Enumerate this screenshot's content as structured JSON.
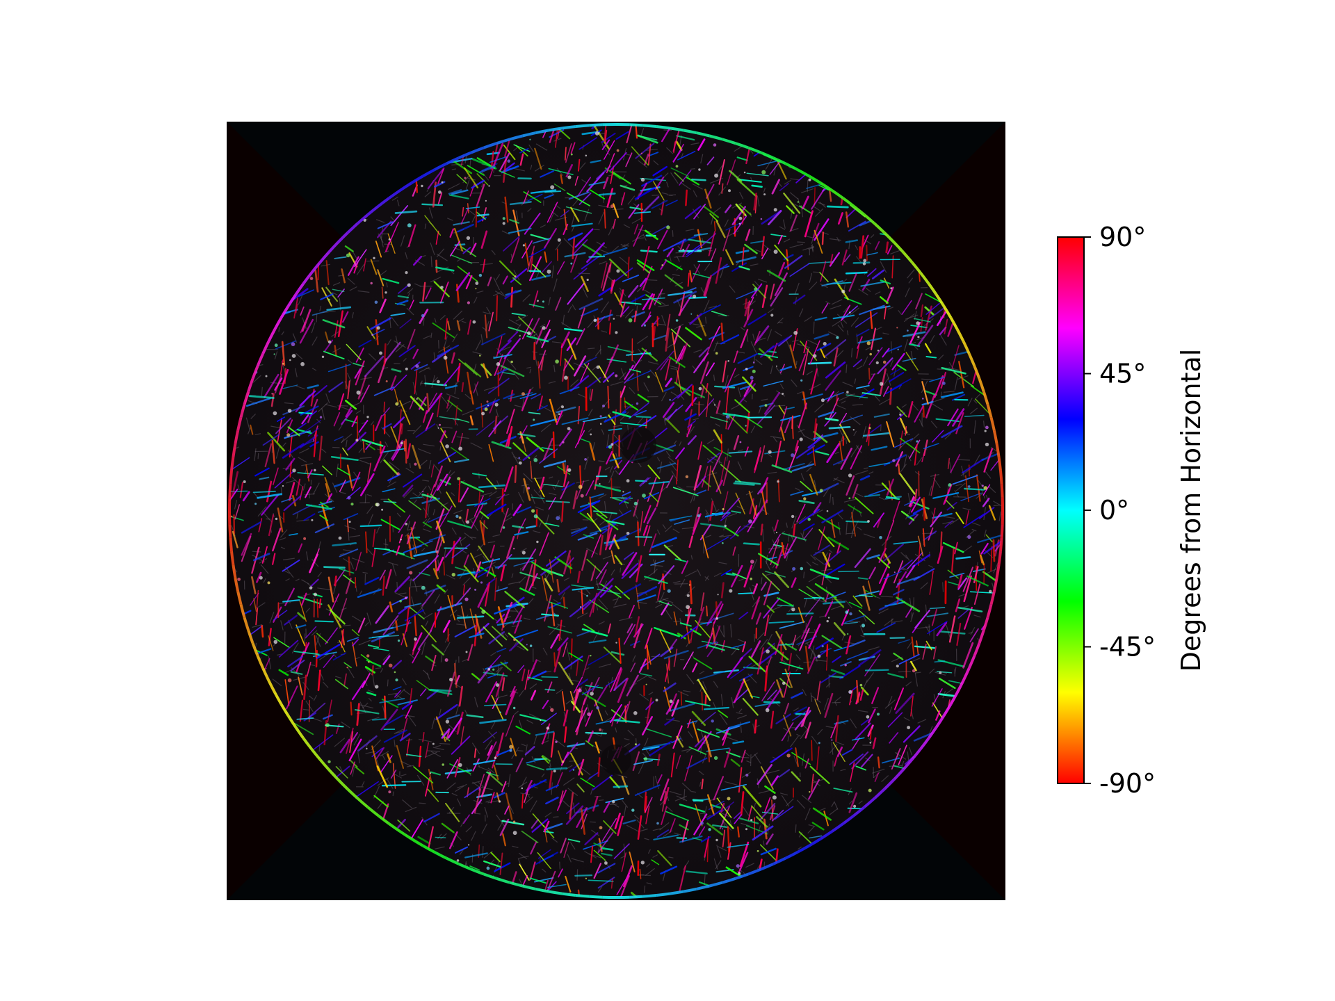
{
  "colorbar": {
    "label": "Degrees from Horizontal",
    "range": [
      -90,
      90
    ],
    "ticks": [
      {
        "value": 90,
        "label": "90°"
      },
      {
        "value": 45,
        "label": "45°"
      },
      {
        "value": 0,
        "label": "0°"
      },
      {
        "value": -45,
        "label": "-45°"
      },
      {
        "value": -90,
        "label": "-90°"
      }
    ],
    "gradient_stops": [
      {
        "value": -90,
        "color": "#ff0000"
      },
      {
        "value": -75,
        "color": "#ff8000"
      },
      {
        "value": -60,
        "color": "#ffff00"
      },
      {
        "value": -30,
        "color": "#00ff00"
      },
      {
        "value": 0,
        "color": "#00ffff"
      },
      {
        "value": 30,
        "color": "#0000ff"
      },
      {
        "value": 60,
        "color": "#ff00ff"
      },
      {
        "value": 90,
        "color": "#ff0000"
      }
    ]
  },
  "image": {
    "description_colors": {
      "background": "#020507",
      "corner_shadow": "#0a0000"
    }
  }
}
